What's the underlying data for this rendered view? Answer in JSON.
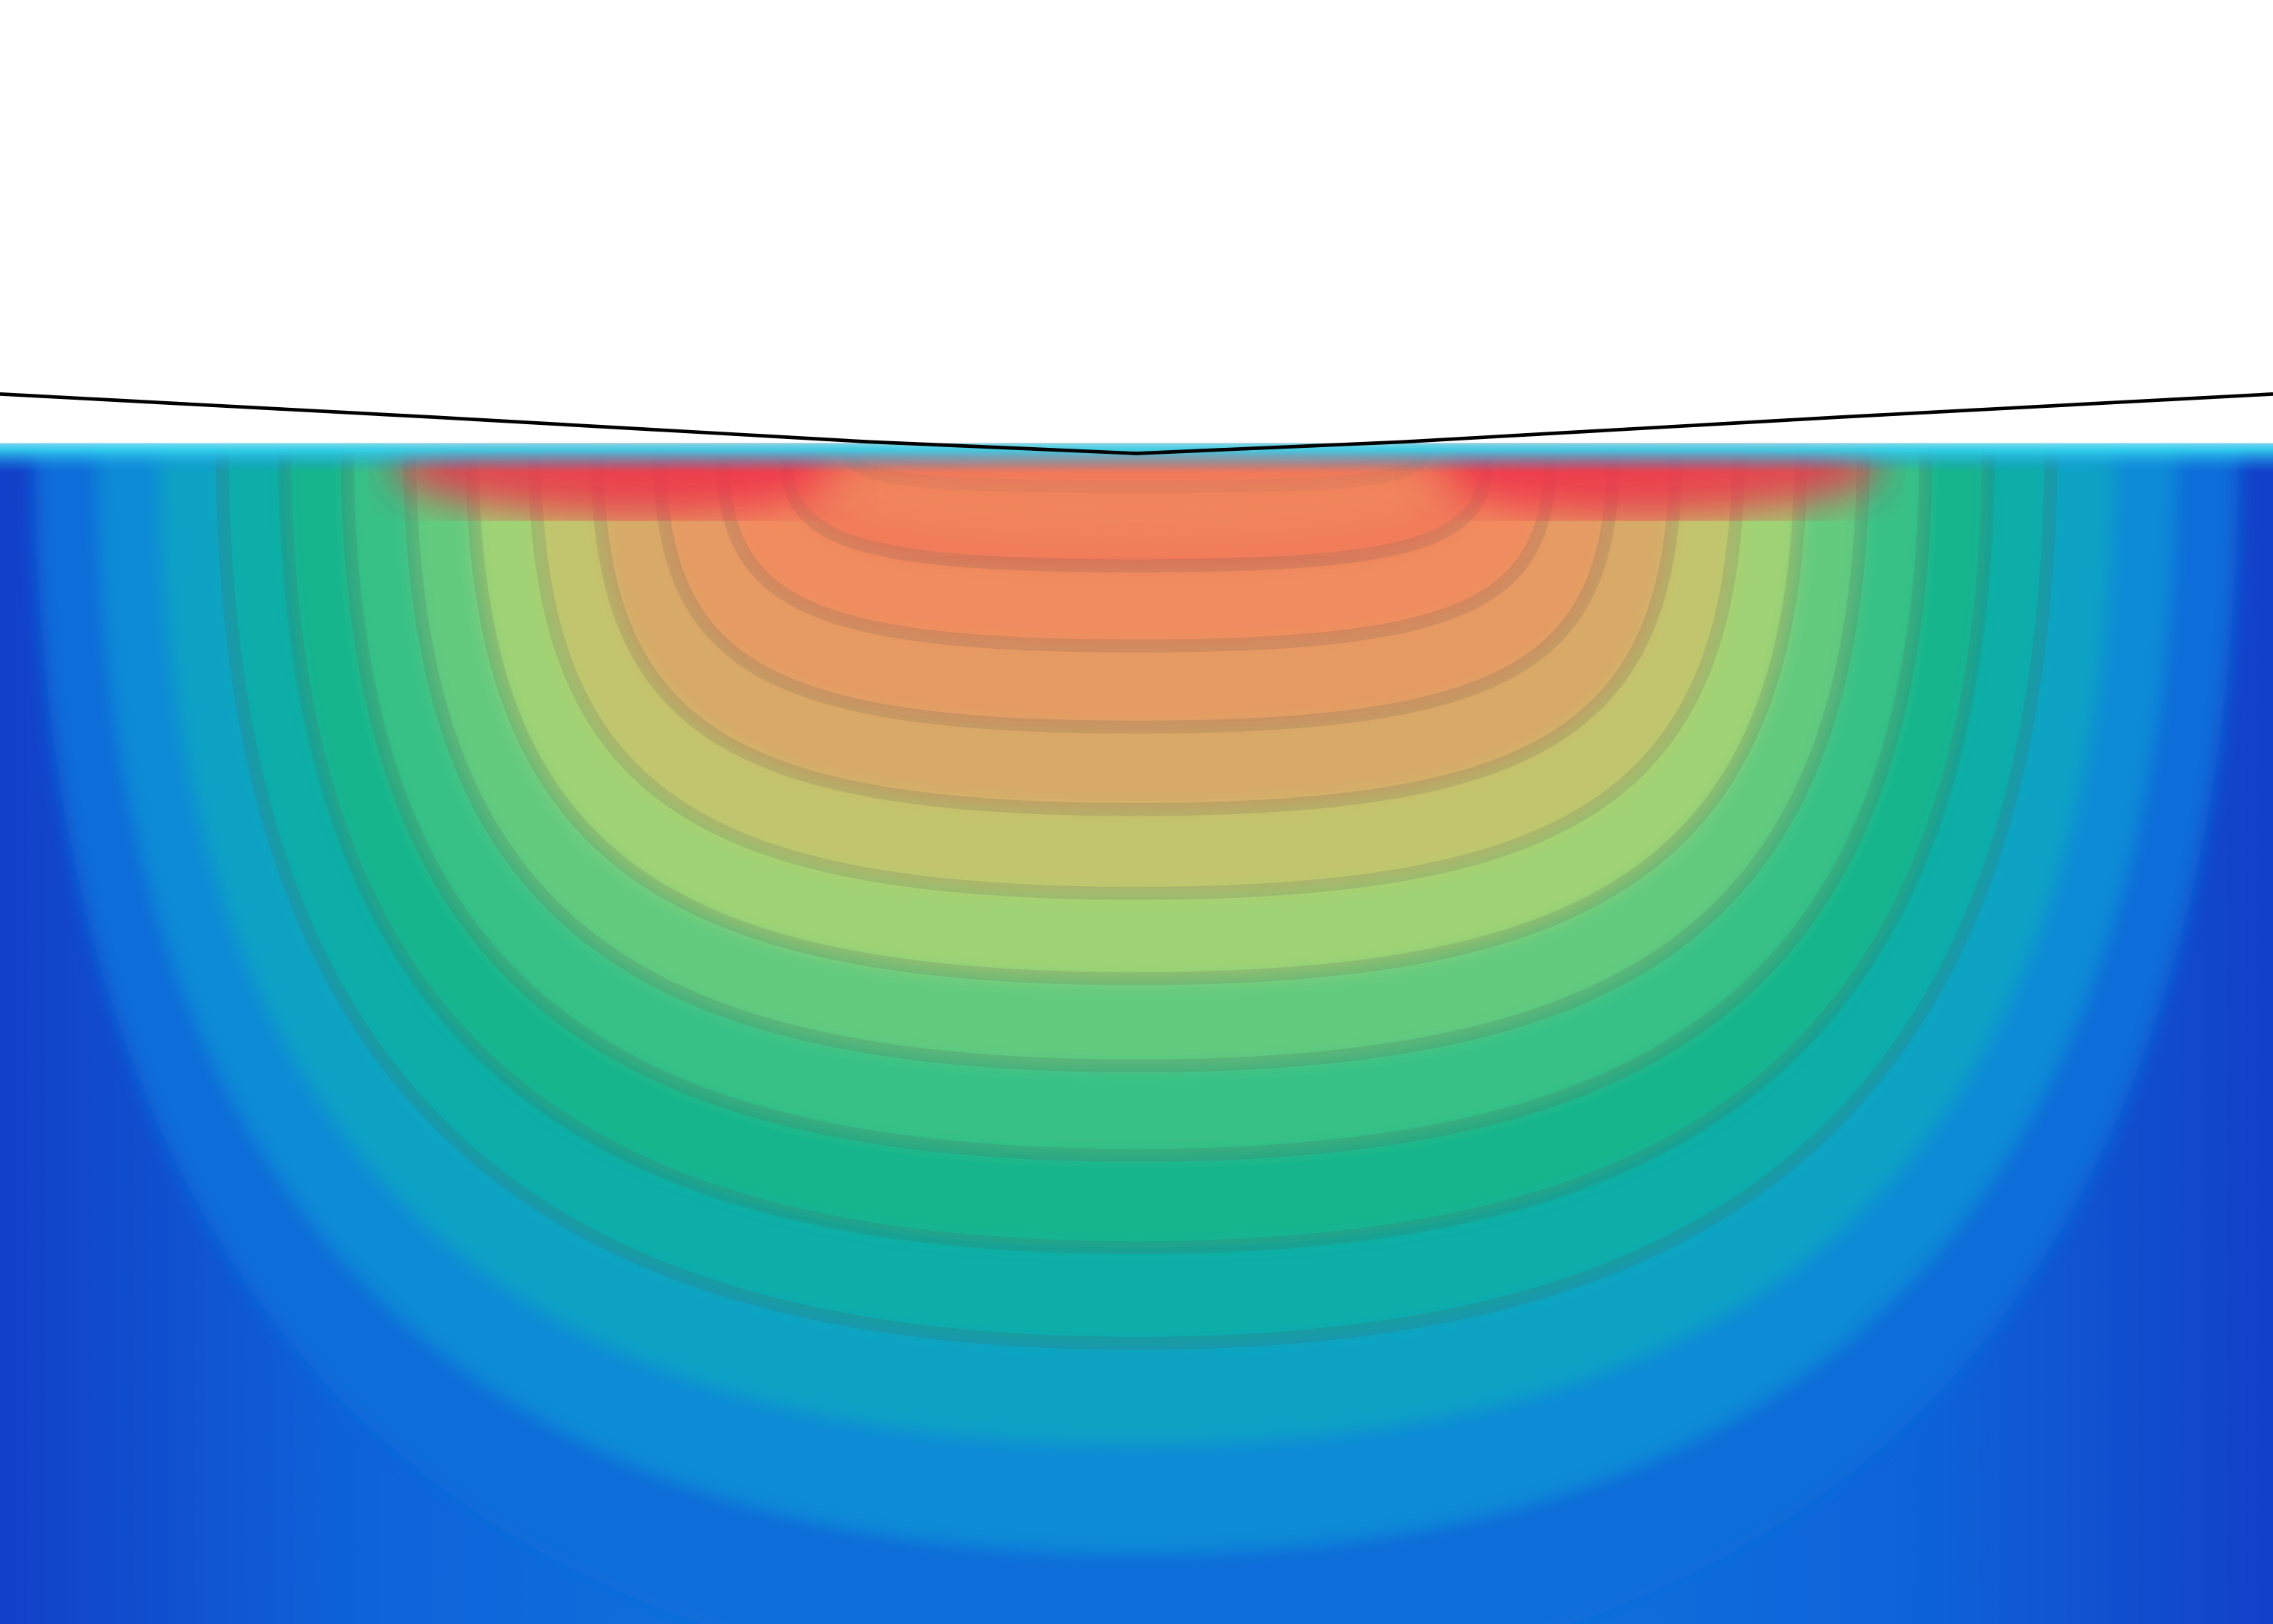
{
  "figure": {
    "kind": "contour-plot",
    "colormap": {
      "name": "jet-like",
      "stops": [
        "#1240c8",
        "#0f7fe0",
        "#11a7c0",
        "#12b48c",
        "#4fc882",
        "#b5d670",
        "#d9a868",
        "#f09060",
        "#f26a55",
        "#ee2e48"
      ]
    },
    "colors": {
      "background": "#ffffff",
      "contour_line": "#555555",
      "profile_line": "#000000"
    },
    "contour_levels": 14
  }
}
